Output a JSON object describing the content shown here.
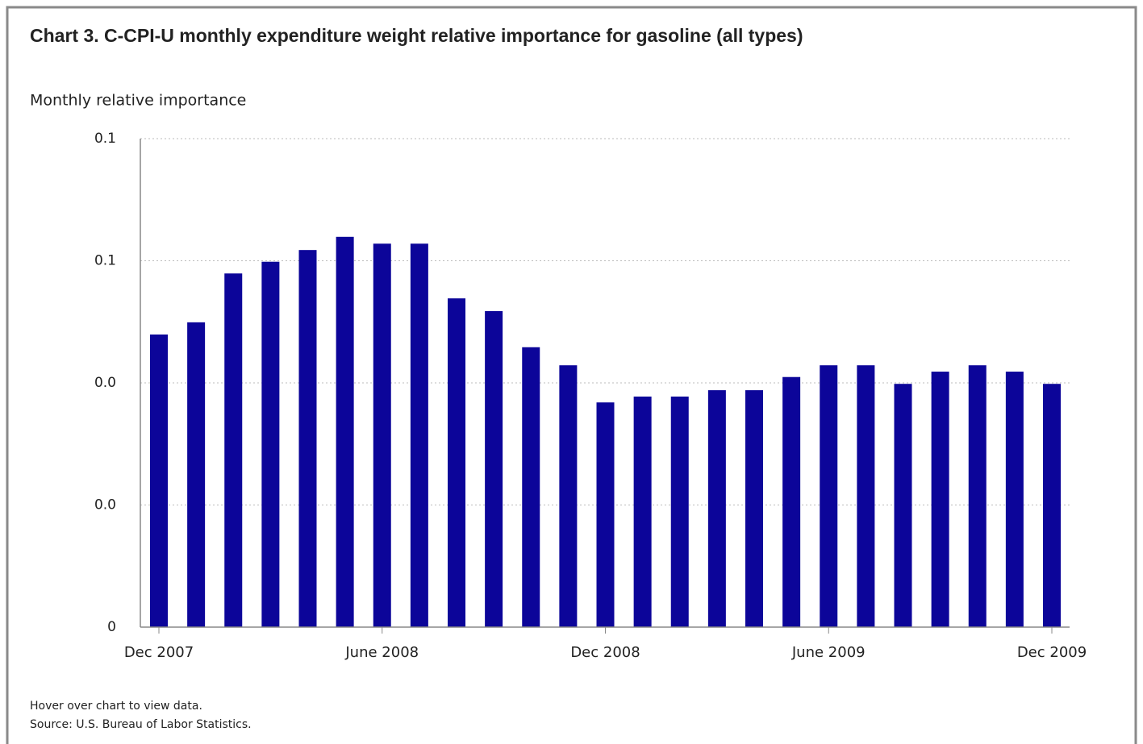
{
  "chart_data": {
    "type": "bar",
    "title": "Chart 3. C-CPI-U monthly expenditure weight relative importance for gasoline (all types)",
    "y_axis_label": "Monthly relative importance",
    "notes": [
      "Hover over chart to view data.",
      "Source: U.S. Bureau of Labor Statistics."
    ],
    "categories": [
      "Dec 2007",
      null,
      null,
      null,
      null,
      null,
      "June 2008",
      null,
      null,
      null,
      null,
      null,
      "Dec 2008",
      null,
      null,
      null,
      null,
      null,
      "June 2009",
      null,
      null,
      null,
      null,
      null,
      "Dec 2009"
    ],
    "values": [
      0.0599,
      0.0624,
      0.0724,
      0.0748,
      0.0772,
      0.0799,
      0.0785,
      0.0785,
      0.0673,
      0.0647,
      0.0573,
      0.0536,
      0.046,
      0.0472,
      0.0472,
      0.0485,
      0.0485,
      0.0512,
      0.0536,
      0.0536,
      0.0498,
      0.0523,
      0.0536,
      0.0523,
      0.0498
    ],
    "color": "#0c0599",
    "ylim": [
      0,
      0.1
    ],
    "yticks": [
      0,
      {
        "value": 0.025,
        "label": "0.0"
      },
      {
        "value": 0.05,
        "label": "0.0"
      },
      {
        "value": 0.075,
        "label": "0.1"
      },
      0.1
    ],
    "grid": true
  }
}
